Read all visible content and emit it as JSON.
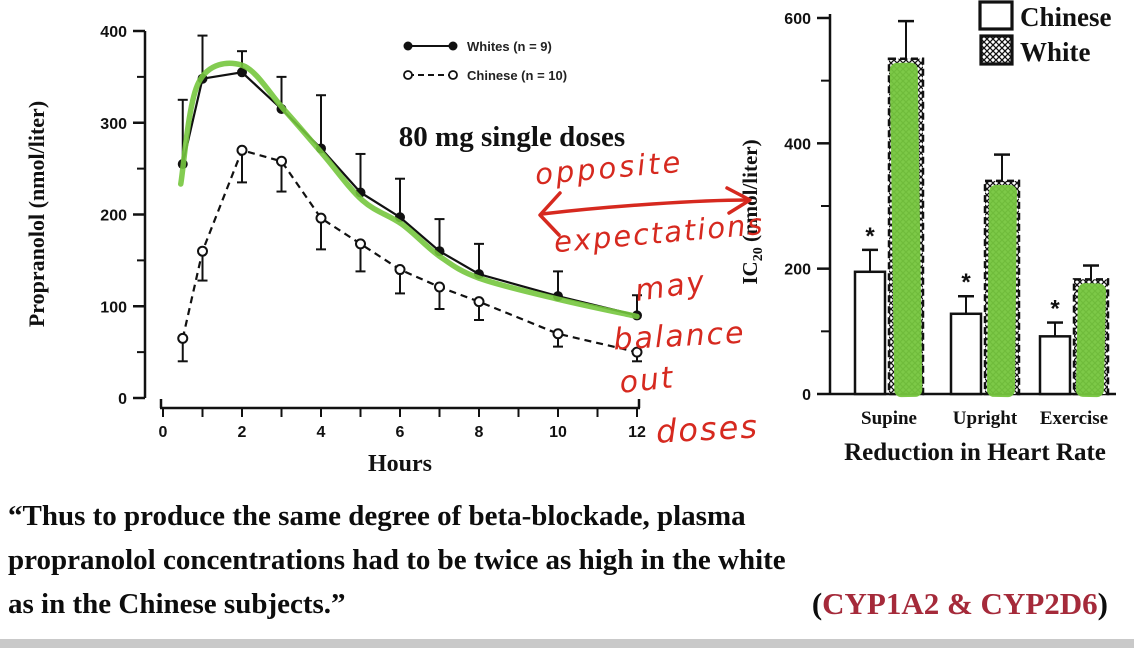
{
  "page": {
    "background": "#ffffff",
    "footer_strip_color": "#c9c9c9"
  },
  "chart_data": [
    {
      "type": "line",
      "name": "propranolol-concentration-chart",
      "ylabel": "Propranolol (nmol/liter)",
      "xlabel": "Hours",
      "annotation": "80 mg single doses",
      "xlim": [
        0,
        12
      ],
      "ylim": [
        0,
        400
      ],
      "x_labeled_ticks": [
        0,
        2,
        4,
        6,
        8,
        10,
        12
      ],
      "x_minor_tick_step": 1,
      "y_labeled_ticks": [
        0,
        100,
        200,
        300,
        400
      ],
      "y_minor_ticks": [
        50,
        150,
        250,
        350
      ],
      "grid": false,
      "legend_position": "upper-middle",
      "x": [
        0.5,
        1,
        2,
        3,
        4,
        5,
        6,
        7,
        8,
        10,
        12
      ],
      "series": [
        {
          "name": "Whites (n = 9)",
          "marker": "filled-circle",
          "line": "solid",
          "errbar_direction": "up",
          "values": [
            255,
            348,
            355,
            315,
            272,
            224,
            197,
            160,
            135,
            111,
            90
          ],
          "err": [
            70,
            47,
            23,
            35,
            58,
            42,
            42,
            35,
            33,
            27,
            22
          ],
          "green_traced": true
        },
        {
          "name": "Chinese (n = 10)",
          "marker": "open-circle",
          "line": "dashed",
          "errbar_direction": "down",
          "values": [
            65,
            160,
            270,
            258,
            196,
            168,
            140,
            121,
            105,
            70,
            50
          ],
          "err": [
            25,
            32,
            35,
            33,
            34,
            30,
            26,
            24,
            20,
            14,
            10
          ],
          "green_traced": false
        }
      ]
    },
    {
      "type": "bar",
      "name": "ic20-heart-rate-chart",
      "ylabel_prefix": "IC",
      "ylabel_sub": "20",
      "ylabel_suffix": " (nmol/liter)",
      "xlabel": "Reduction in Heart Rate",
      "ylim": [
        0,
        600
      ],
      "y_labeled_ticks": [
        0,
        200,
        400,
        600
      ],
      "y_minor_ticks": [
        100,
        300,
        500
      ],
      "grid": false,
      "legend_position": "upper-right",
      "categories": [
        "Supine",
        "Upright",
        "Exercise"
      ],
      "series": [
        {
          "name": "Chinese",
          "style": "open",
          "values": [
            195,
            128,
            92
          ],
          "err": [
            35,
            28,
            22
          ],
          "significance": [
            "*",
            "*",
            "*"
          ],
          "green_highlight": false
        },
        {
          "name": "White",
          "style": "hatched",
          "values": [
            535,
            340,
            183
          ],
          "err": [
            60,
            42,
            22
          ],
          "significance": [
            "",
            "",
            ""
          ],
          "green_highlight": true
        }
      ]
    }
  ],
  "annotations": {
    "green_color": "#76c63e",
    "red_color": "#d6291f",
    "note_opposite": {
      "word1": "opposite",
      "word2": "expectations",
      "arrow": "double-headed-arrow"
    },
    "note_balance": {
      "words": [
        "may",
        "balance",
        "out",
        "doses"
      ]
    }
  },
  "quote": {
    "line1": "“Thus to produce the same degree of beta-blockade, plasma",
    "line2": "propranolol concentrations had to be twice as high in the white",
    "line3": "as in the Chinese subjects.”",
    "citation_prefix": "(",
    "citation": "CYP1A2 & CYP2D6",
    "citation_suffix": ")",
    "citation_color": "#a52a3a"
  }
}
